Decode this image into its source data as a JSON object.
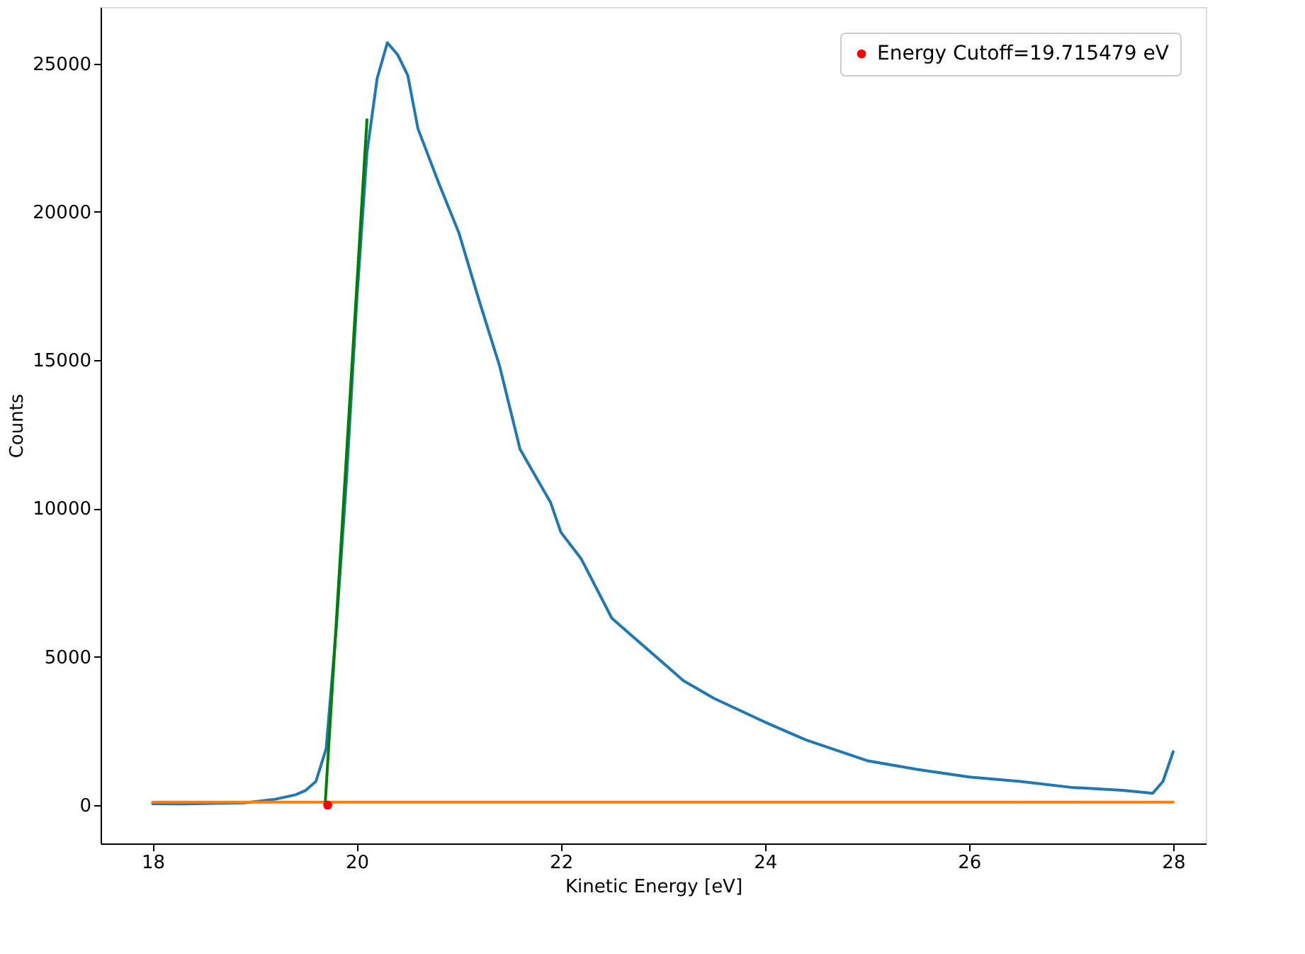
{
  "chart_data": {
    "type": "line",
    "xlabel": "Kinetic Energy [eV]",
    "ylabel": "Counts",
    "xlim": [
      17.49,
      28.32
    ],
    "ylim": [
      -1290,
      26900
    ],
    "xticks": [
      18,
      20,
      22,
      24,
      26,
      28
    ],
    "yticks": [
      0,
      5000,
      10000,
      15000,
      20000,
      25000
    ],
    "grid": false,
    "legend": "top right",
    "series": [
      {
        "color": "#1f77b4",
        "x": [
          18,
          18.3,
          18.6,
          18.9,
          19.2,
          19.4,
          19.5,
          19.6,
          19.7,
          19.8,
          19.9,
          20.0,
          20.1,
          20.2,
          20.3,
          20.4,
          20.5,
          20.6,
          20.8,
          21.0,
          21.2,
          21.4,
          21.6,
          21.8,
          21.9,
          22.0,
          22.2,
          22.5,
          22.7,
          23.0,
          23.2,
          23.5,
          24.0,
          24.4,
          25.0,
          25.5,
          26.0,
          26.5,
          27.0,
          27.5,
          27.8,
          27.9,
          28.0
        ],
        "values": [
          50,
          40,
          60,
          80,
          200,
          350,
          500,
          800,
          1900,
          6000,
          11000,
          17000,
          22000,
          24500,
          25700,
          25300,
          24600,
          22800,
          21000,
          19300,
          17000,
          14800,
          12000,
          10800,
          10200,
          9200,
          8300,
          6300,
          5700,
          4800,
          4200,
          3600,
          2800,
          2200,
          1500,
          1200,
          950,
          800,
          600,
          500,
          400,
          800,
          1800
        ]
      },
      {
        "color": "#ff7f0e",
        "x": [
          18,
          28
        ],
        "values": [
          100,
          100
        ]
      },
      {
        "color": "#008000",
        "x": [
          19.69,
          20.1
        ],
        "values": [
          0,
          23100
        ]
      },
      {
        "type": "scatter",
        "name": "Energy Cutoff=19.715479 eV",
        "color": "#ff0000",
        "marker": "circle",
        "x": [
          19.715479
        ],
        "values": [
          0
        ]
      }
    ]
  }
}
